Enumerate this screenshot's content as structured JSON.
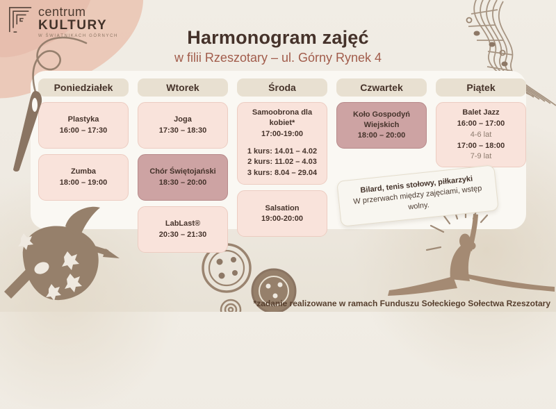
{
  "logo": {
    "line1": "centrum",
    "line2": "KULTURY",
    "line3": "W ŚWIĄTNIKACH GÓRNYCH"
  },
  "header": {
    "title": "Harmonogram zajęć",
    "subtitle": "w filii Rzeszotary – ul. Górny Rynek 4"
  },
  "schedule": {
    "days": [
      {
        "label": "Poniedziałek",
        "events": [
          {
            "title": "Plastyka",
            "time": "16:00 – 17:30",
            "variant": "light"
          },
          {
            "title": "Zumba",
            "time": "18:00 – 19:00",
            "variant": "light"
          }
        ]
      },
      {
        "label": "Wtorek",
        "events": [
          {
            "title": "Joga",
            "time": "17:30 – 18:30",
            "variant": "light"
          },
          {
            "title": "Chór Świętojański",
            "time": "18:30 – 20:00",
            "variant": "dark"
          },
          {
            "title": "LabLast®",
            "time": "20:30 – 21:30",
            "variant": "light"
          }
        ]
      },
      {
        "label": "Środa",
        "events": [
          {
            "title": "Samoobrona dla kobiet*",
            "time": "17:00-19:00",
            "variant": "light",
            "details": [
              "1 kurs: 14.01 – 4.02",
              "2 kurs: 11.02 – 4.03",
              "3 kurs: 8.04 – 29.04"
            ]
          },
          {
            "title": "Salsation",
            "time": "19:00-20:00",
            "variant": "light"
          }
        ]
      },
      {
        "label": "Czwartek",
        "events": [
          {
            "title": "Koło Gospodyń Wiejskich",
            "time": "18:00 – 20:00",
            "variant": "dark"
          }
        ]
      },
      {
        "label": "Piątek",
        "events": [
          {
            "title": "Balet Jazz",
            "variant": "light",
            "slots": [
              {
                "time": "16:00 – 17:00",
                "age": "4-6 lat"
              },
              {
                "time": "17:00 – 18:00",
                "age": "7-9 lat"
              }
            ]
          }
        ]
      }
    ]
  },
  "note": {
    "line1": "Bilard, tenis stołowy, piłkarzyki",
    "line2": "W przerwach między zajęciami, wstęp wolny."
  },
  "footnote": "*zadanie realizowane w ramach Funduszu Sołeckiego Sołectwa Rzeszotary",
  "icons": {
    "logo": "nested-frames-logo-icon",
    "top_left": "needle-and-thread-icon",
    "top_right": "music-staff-icon",
    "bottom_left": "paint-palette-icon",
    "bottom_center": "sewing-buttons-icon",
    "bottom_right": "gymnast-silhouette-icon"
  },
  "colors": {
    "background": "#efeae2",
    "panel": "#faf8f3",
    "day_pill": "#e8e0d1",
    "card_light_bg": "#f9e3db",
    "card_light_border": "#ecccc1",
    "card_dark_bg": "#cda3a3",
    "card_dark_border": "#b68989",
    "text_dark": "#45332b",
    "subtitle": "#a15c4b",
    "accent_pink_wash": "#eac3b2",
    "decoration_brown": "#97816b"
  }
}
